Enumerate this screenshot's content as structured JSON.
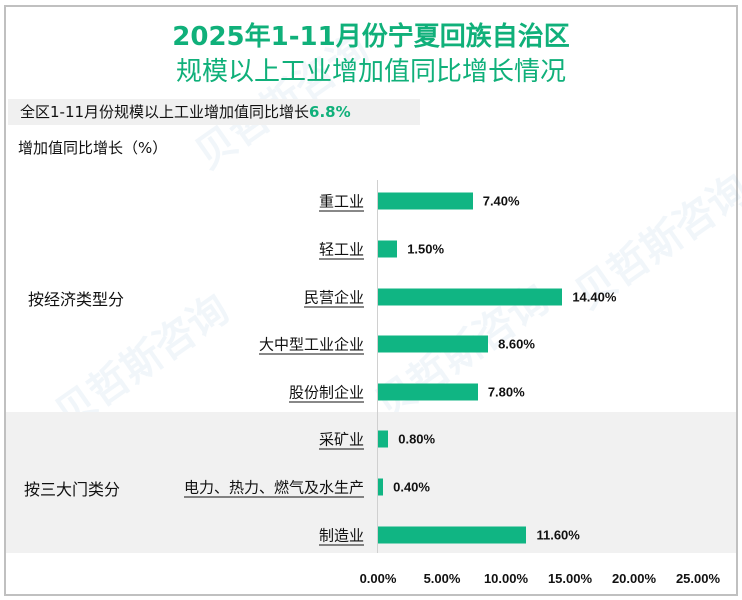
{
  "title_line1": "2025年1-11月份宁夏回族自治区",
  "title_line2": "规模以上工业增加值同比增长情况",
  "summary": {
    "text": "全区1-11月份规模以上工业增加值同比增长",
    "highlight": "6.8%"
  },
  "y_axis_label": "增加值同比增长（%）",
  "watermark": "贝哲斯咨询",
  "groups": [
    {
      "label": "按经济类型分"
    },
    {
      "label": "按三大门类分"
    }
  ],
  "colors": {
    "accent": "#10b07a",
    "bar": "#10b583",
    "band": "#f1f1f1"
  },
  "chart_data": {
    "type": "bar",
    "orientation": "horizontal",
    "title": "2025年1-11月份宁夏回族自治区规模以上工业增加值同比增长情况",
    "ylabel": "增加值同比增长（%）",
    "categories": [
      "重工业",
      "轻工业",
      "民营企业",
      "大中型工业企业",
      "股份制企业",
      "采矿业",
      "电力、热力、燃气及水生产",
      "制造业"
    ],
    "category_groups": [
      "按经济类型分",
      "按经济类型分",
      "按经济类型分",
      "按经济类型分",
      "按经济类型分",
      "按三大门类分",
      "按三大门类分",
      "按三大门类分"
    ],
    "values": [
      7.4,
      1.5,
      14.4,
      8.6,
      7.8,
      0.8,
      0.4,
      11.6
    ],
    "value_labels": [
      "7.40%",
      "1.50%",
      "14.40%",
      "8.60%",
      "7.80%",
      "0.80%",
      "0.40%",
      "11.60%"
    ],
    "x_ticks": [
      "0.00%",
      "5.00%",
      "10.00%",
      "15.00%",
      "20.00%",
      "25.00%"
    ],
    "xlim": [
      0,
      25
    ],
    "grid": false,
    "legend": "none"
  }
}
